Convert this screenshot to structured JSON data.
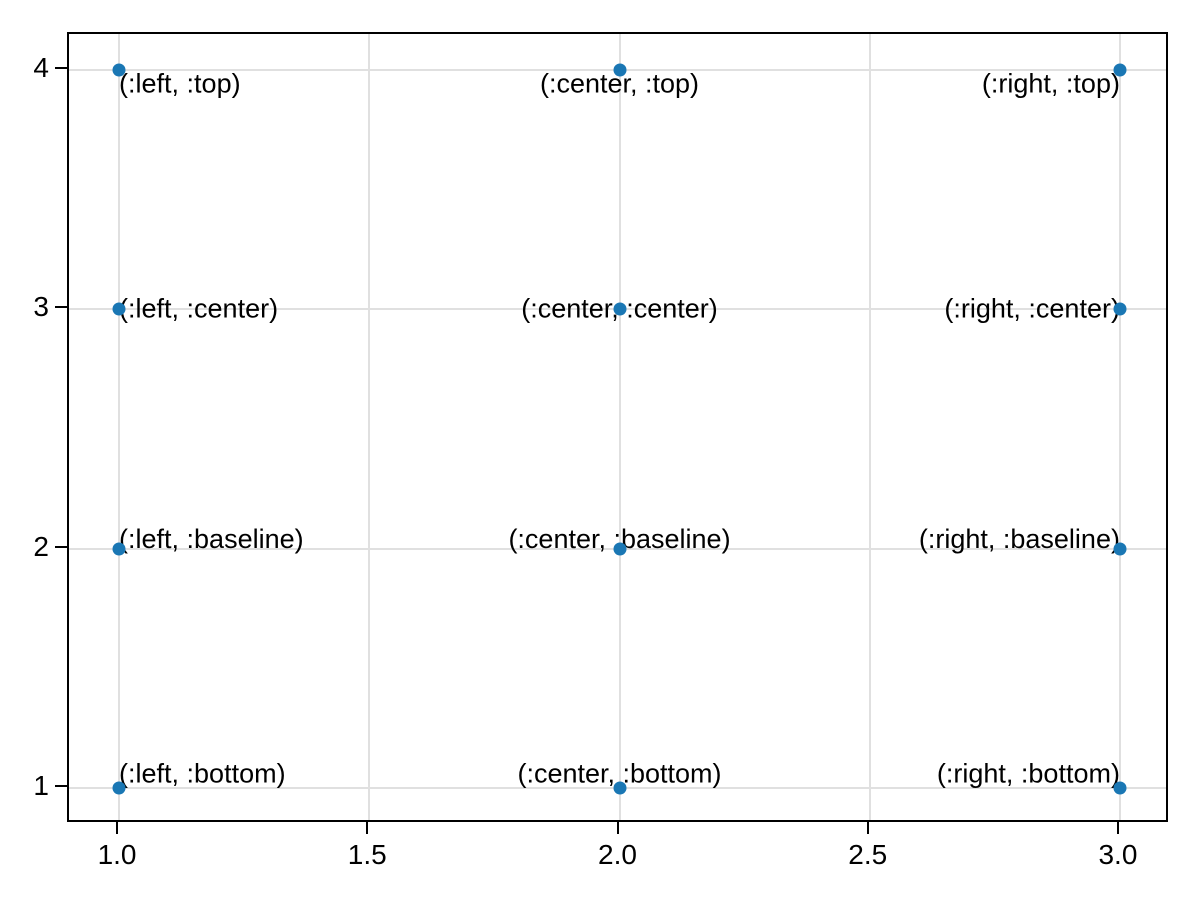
{
  "figure": {
    "background": "#ffffff"
  },
  "chart_data": {
    "type": "scatter",
    "title": "",
    "xlabel": "",
    "ylabel": "",
    "xlim": [
      0.9,
      3.1
    ],
    "ylim": [
      0.85,
      4.15
    ],
    "grid": true,
    "legend": "none",
    "x_ticks": [
      1.0,
      1.5,
      2.0,
      2.5,
      3.0
    ],
    "x_tick_labels": [
      "1.0",
      "1.5",
      "2.0",
      "2.5",
      "3.0"
    ],
    "y_ticks": [
      1,
      2,
      3,
      4
    ],
    "y_tick_labels": [
      "1",
      "2",
      "3",
      "4"
    ],
    "marker_color": "#1a77b4",
    "grid_color": "#e0e0e0",
    "spine_color": "#000000",
    "text_color": "#000000",
    "points": [
      {
        "x": 1,
        "y": 4,
        "label": "(:left, :top)",
        "halign": "left",
        "valign": "top"
      },
      {
        "x": 2,
        "y": 4,
        "label": "(:center, :top)",
        "halign": "center",
        "valign": "top"
      },
      {
        "x": 3,
        "y": 4,
        "label": "(:right, :top)",
        "halign": "right",
        "valign": "top"
      },
      {
        "x": 1,
        "y": 3,
        "label": "(:left, :center)",
        "halign": "left",
        "valign": "center"
      },
      {
        "x": 2,
        "y": 3,
        "label": "(:center, :center)",
        "halign": "center",
        "valign": "center"
      },
      {
        "x": 3,
        "y": 3,
        "label": "(:right, :center)",
        "halign": "right",
        "valign": "center"
      },
      {
        "x": 1,
        "y": 2,
        "label": "(:left, :baseline)",
        "halign": "left",
        "valign": "baseline"
      },
      {
        "x": 2,
        "y": 2,
        "label": "(:center, :baseline)",
        "halign": "center",
        "valign": "baseline"
      },
      {
        "x": 3,
        "y": 2,
        "label": "(:right, :baseline)",
        "halign": "right",
        "valign": "baseline"
      },
      {
        "x": 1,
        "y": 1,
        "label": "(:left, :bottom)",
        "halign": "left",
        "valign": "bottom"
      },
      {
        "x": 2,
        "y": 1,
        "label": "(:center, :bottom)",
        "halign": "center",
        "valign": "bottom"
      },
      {
        "x": 3,
        "y": 1,
        "label": "(:right, :bottom)",
        "halign": "right",
        "valign": "bottom"
      }
    ]
  }
}
